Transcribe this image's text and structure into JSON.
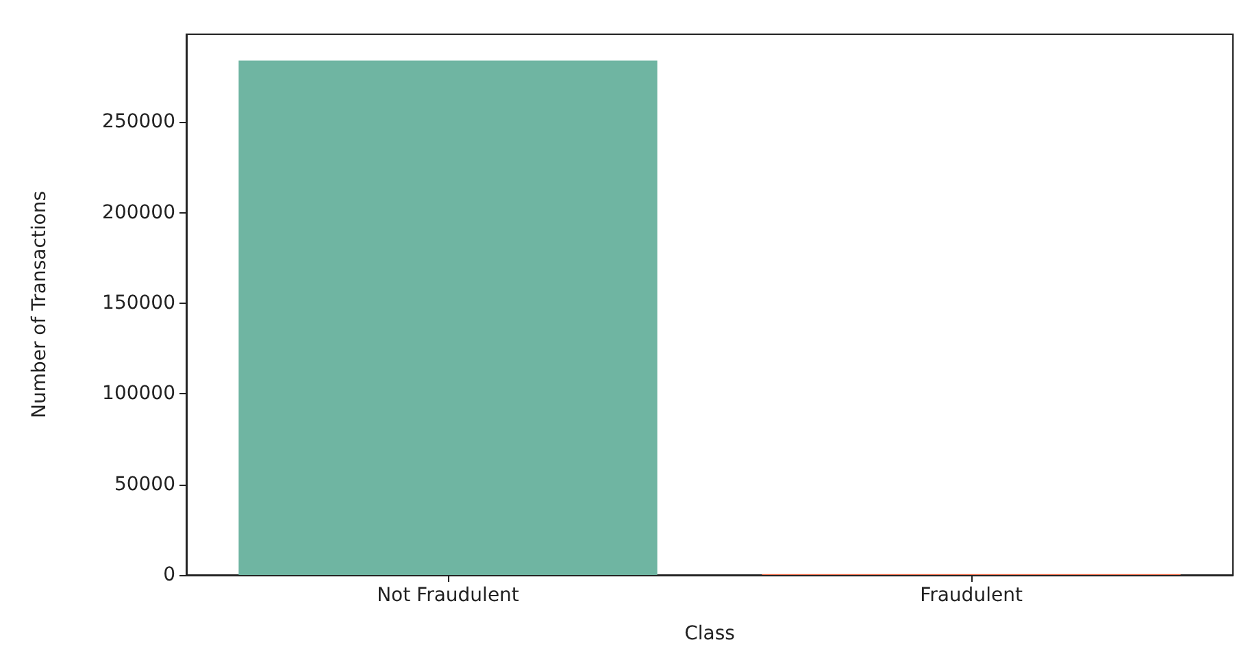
{
  "chart_data": {
    "type": "bar",
    "xlabel": "Class",
    "ylabel": "Number of Transactions",
    "categories": [
      "Not Fraudulent",
      "Fraudulent"
    ],
    "values": [
      284000,
      500
    ],
    "colors": [
      "#6fb5a2",
      "#e8603c"
    ],
    "ylim": [
      0,
      298500
    ],
    "yticks": [
      0,
      50000,
      100000,
      150000,
      200000,
      250000
    ],
    "grid": false
  }
}
